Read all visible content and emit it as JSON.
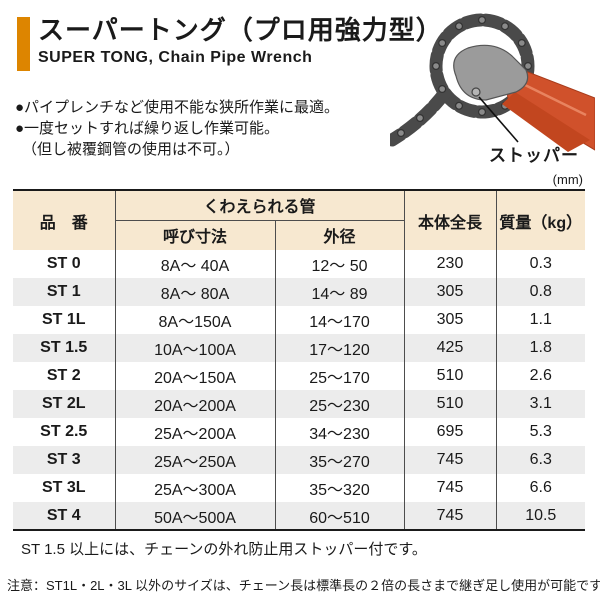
{
  "header": {
    "title": "スーパートング（プロ用強力型）",
    "subtitle": "SUPER TONG, Chain Pipe Wrench"
  },
  "features": [
    "●パイプレンチなど使用不能な狭所作業に最適。",
    "●一度セットすれば繰り返し作業可能。",
    "（但し被覆鋼管の使用は不可。）"
  ],
  "product_image": {
    "description": "chain pipe wrench photo",
    "stopper_label": "ストッパー"
  },
  "table": {
    "unit_label": "(mm)",
    "headers": {
      "part_number": "品　番",
      "grippable_pipe_group": "くわえられる管",
      "nominal_size": "呼び寸法",
      "outer_diameter": "外径",
      "overall_length": "本体全長",
      "mass": "質量（kg）"
    },
    "rows": [
      {
        "model": "ST 0",
        "nominal": "8A～ 40A",
        "outer": "12～ 50",
        "length": "230",
        "mass": "0.3"
      },
      {
        "model": "ST 1",
        "nominal": "8A～ 80A",
        "outer": "14～ 89",
        "length": "305",
        "mass": "0.8"
      },
      {
        "model": "ST 1L",
        "nominal": "8A～150A",
        "outer": "14～170",
        "length": "305",
        "mass": "1.1"
      },
      {
        "model": "ST 1.5",
        "nominal": "10A～100A",
        "outer": "17～120",
        "length": "425",
        "mass": "1.8"
      },
      {
        "model": "ST 2",
        "nominal": "20A～150A",
        "outer": "25～170",
        "length": "510",
        "mass": "2.6"
      },
      {
        "model": "ST 2L",
        "nominal": "20A～200A",
        "outer": "25～230",
        "length": "510",
        "mass": "3.1"
      },
      {
        "model": "ST 2.5",
        "nominal": "25A～200A",
        "outer": "34～230",
        "length": "695",
        "mass": "5.3"
      },
      {
        "model": "ST 3",
        "nominal": "25A～250A",
        "outer": "35～270",
        "length": "745",
        "mass": "6.3"
      },
      {
        "model": "ST 3L",
        "nominal": "25A～300A",
        "outer": "35～320",
        "length": "745",
        "mass": "6.6"
      },
      {
        "model": "ST 4",
        "nominal": "50A～500A",
        "outer": "60～510",
        "length": "745",
        "mass": "10.5"
      }
    ]
  },
  "notes": [
    "ST 1.5 以上には、チェーンの外れ防止用ストッパー付です。",
    "注意：ST1L・2L・3L 以外のサイズは、チェーン長は標準長の２倍の長さまで継ぎ足し使用が可能です。"
  ],
  "colors": {
    "accent_orange": "#dd8500",
    "table_header_bg": "#f7e8d0",
    "row_alt_bg": "#ececec",
    "wrench_handle": "#d0512b",
    "chain_gray": "#4a4a4a",
    "text": "#1a1a1a"
  }
}
